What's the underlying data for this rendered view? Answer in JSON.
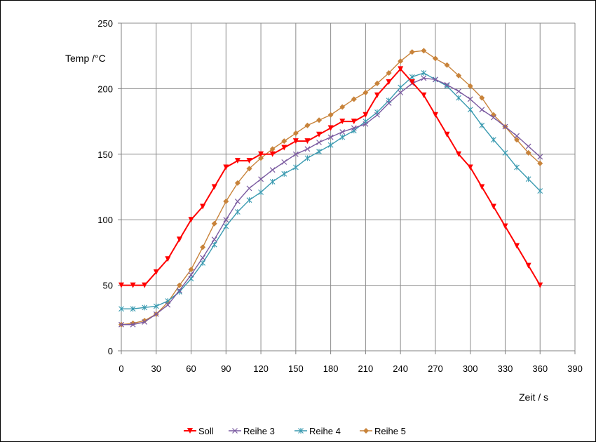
{
  "chart_data": {
    "type": "line",
    "title": "",
    "xlabel": "Zeit / s",
    "ylabel": "Temp /°C",
    "xlim": [
      0,
      390
    ],
    "ylim": [
      0,
      250
    ],
    "x_ticks": [
      0,
      30,
      60,
      90,
      120,
      150,
      180,
      210,
      240,
      270,
      300,
      330,
      360,
      390
    ],
    "y_ticks": [
      0,
      50,
      100,
      150,
      200,
      250
    ],
    "grid": true,
    "legend_position": "bottom",
    "series": [
      {
        "name": "Soll",
        "color": "#ff0000",
        "marker": "triangle-down",
        "x": [
          0,
          10,
          20,
          30,
          40,
          50,
          60,
          70,
          80,
          90,
          100,
          110,
          120,
          130,
          140,
          150,
          160,
          170,
          180,
          190,
          200,
          210,
          220,
          230,
          240,
          250,
          260,
          270,
          280,
          290,
          300,
          310,
          320,
          330,
          340,
          350,
          360
        ],
        "y": [
          50,
          50,
          50,
          60,
          70,
          85,
          100,
          110,
          125,
          140,
          145,
          145,
          150,
          150,
          155,
          160,
          160,
          165,
          170,
          175,
          175,
          180,
          195,
          205,
          215,
          205,
          195,
          180,
          165,
          150,
          140,
          125,
          110,
          95,
          80,
          65,
          50
        ]
      },
      {
        "name": "Reihe 3",
        "color": "#7a5aa0",
        "marker": "x",
        "x": [
          0,
          10,
          20,
          30,
          40,
          50,
          60,
          70,
          80,
          90,
          100,
          110,
          120,
          130,
          140,
          150,
          160,
          170,
          180,
          190,
          200,
          210,
          220,
          230,
          240,
          250,
          260,
          270,
          280,
          290,
          300,
          310,
          320,
          330,
          340,
          350,
          360
        ],
        "y": [
          20,
          20,
          22,
          28,
          35,
          46,
          58,
          71,
          85,
          100,
          114,
          124,
          131,
          138,
          144,
          150,
          154,
          159,
          163,
          167,
          170,
          173,
          180,
          189,
          197,
          204,
          208,
          207,
          203,
          198,
          192,
          184,
          178,
          171,
          164,
          156,
          148
        ]
      },
      {
        "name": "Reihe 4",
        "color": "#3a9ab0",
        "marker": "star",
        "x": [
          0,
          10,
          20,
          30,
          40,
          50,
          60,
          70,
          80,
          90,
          100,
          110,
          120,
          130,
          140,
          150,
          160,
          170,
          180,
          190,
          200,
          210,
          220,
          230,
          240,
          250,
          260,
          270,
          280,
          290,
          300,
          310,
          320,
          330,
          340,
          350,
          360
        ],
        "y": [
          32,
          32,
          33,
          34,
          38,
          45,
          55,
          67,
          81,
          95,
          106,
          115,
          121,
          129,
          135,
          140,
          147,
          152,
          157,
          163,
          168,
          175,
          182,
          191,
          201,
          209,
          212,
          207,
          202,
          193,
          184,
          172,
          161,
          151,
          140,
          131,
          122
        ]
      },
      {
        "name": "Reihe 5",
        "color": "#c8833a",
        "marker": "diamond",
        "x": [
          0,
          10,
          20,
          30,
          40,
          50,
          60,
          70,
          80,
          90,
          100,
          110,
          120,
          130,
          140,
          150,
          160,
          170,
          180,
          190,
          200,
          210,
          220,
          230,
          240,
          250,
          260,
          270,
          280,
          290,
          300,
          310,
          320,
          330,
          340,
          350,
          360
        ],
        "y": [
          20,
          21,
          23,
          28,
          37,
          50,
          62,
          79,
          97,
          114,
          128,
          139,
          147,
          154,
          160,
          166,
          172,
          176,
          180,
          186,
          192,
          197,
          204,
          212,
          221,
          228,
          229,
          223,
          218,
          210,
          202,
          193,
          180,
          171,
          161,
          151,
          143
        ]
      }
    ]
  }
}
